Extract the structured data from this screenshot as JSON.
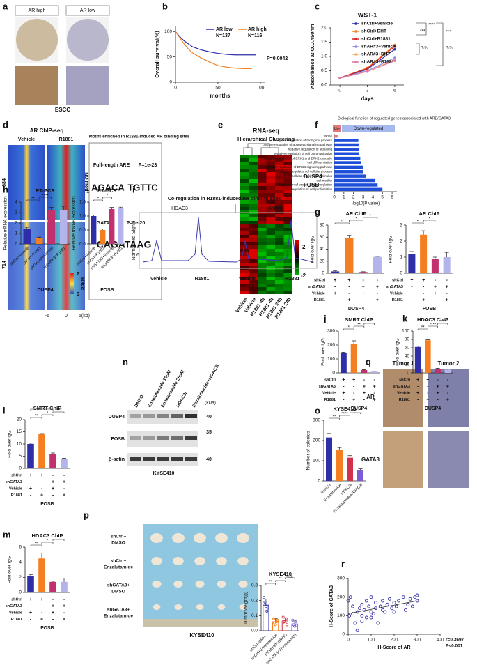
{
  "chart_data": [
    {
      "type": "line",
      "xlabel": "months",
      "ylabel": "Overall survival(%)",
      "xlim": [
        0,
        105
      ],
      "xticks": [
        0,
        50,
        100
      ],
      "ylim": [
        0,
        110
      ],
      "yticks": [
        0,
        50,
        100
      ],
      "series": [
        {
          "name": "AR low",
          "color": "#2e2ea8",
          "x": [
            0,
            5,
            10,
            15,
            20,
            30,
            40,
            50,
            60,
            70,
            80,
            95
          ],
          "values": [
            100,
            90,
            82,
            76,
            70,
            64,
            60,
            57,
            55,
            54,
            54,
            54
          ]
        },
        {
          "name": "AR high",
          "color": "#f57f20",
          "x": [
            0,
            5,
            10,
            15,
            20,
            30,
            40,
            50,
            60,
            70,
            80,
            90
          ],
          "values": [
            100,
            88,
            76,
            66,
            58,
            48,
            40,
            33,
            30,
            28,
            27,
            27
          ]
        }
      ],
      "annotations": [
        "N=137",
        "N=116",
        "P=0.0042"
      ]
    },
    {
      "type": "line",
      "title": "WST-1",
      "xlabel": "days",
      "ylabel": "Absorbance at O.D.450nm",
      "x": [
        0,
        3,
        6
      ],
      "xlim": [
        -1,
        7
      ],
      "xticks": [
        0,
        3,
        6
      ],
      "ylim": [
        0,
        2
      ],
      "yticks": [
        {
          "value": 0,
          "label": "0.0"
        },
        0.5,
        {
          "value": 1,
          "label": "1.0"
        },
        1.5,
        {
          "value": 2,
          "label": "2.0"
        }
      ],
      "series": [
        {
          "name": "shCtrl+Vehicle",
          "color": "#2e2ea8",
          "values": [
            0.25,
            0.55,
            1.25
          ]
        },
        {
          "name": "shCtrl+DHT",
          "color": "#f57f20",
          "values": [
            0.25,
            0.6,
            1.4
          ]
        },
        {
          "name": "shCtrl+R1881",
          "color": "#d62728",
          "values": [
            0.25,
            0.58,
            1.35
          ]
        },
        {
          "name": "shAR#3+Vehicle",
          "color": "#8f8fe0",
          "values": [
            0.25,
            0.5,
            0.95
          ]
        },
        {
          "name": "shAR#3+DHT",
          "color": "#f0b070",
          "values": [
            0.24,
            0.48,
            0.88
          ]
        },
        {
          "name": "shAR#3+R1881",
          "color": "#e07aa8",
          "values": [
            0.24,
            0.47,
            0.85
          ]
        }
      ],
      "annotations": [
        "****",
        "***",
        "***",
        "n.s.",
        "n.s."
      ]
    },
    {
      "type": "barh",
      "title": "Biological function of regulated genes associated with ARE/GATA3",
      "xlabel": "-log10(P value)",
      "categories": [
        "None",
        "negative regulation of biological process",
        "positive regulation of apoptotic signaling pathway",
        "negative regulation of signaling",
        "negative regulation of cell communication",
        "negative regulation of ERK1 and ERK2 cascade",
        "cell differentiation",
        "negative regulation of ERBB signaling pathway",
        "negative regulation of cellular process",
        "cellular response to stimulus",
        "cell motility",
        "regulation of protein phosphorylation",
        "regulation of cell proliferation"
      ],
      "series": [
        {
          "name": "Up-",
          "color": "#e07b7b",
          "values": [
            0.35,
            null,
            null,
            null,
            null,
            null,
            null,
            null,
            null,
            null,
            null,
            null,
            null
          ]
        },
        {
          "name": "Down-regulated",
          "color": "#1f4fd8",
          "values": [
            null,
            2.5,
            2.6,
            2.6,
            2.6,
            2.7,
            2.8,
            3.0,
            3.0,
            3.3,
            4.2,
            4.5,
            5.0
          ]
        }
      ],
      "xlim": [
        0,
        6.5
      ],
      "xticks": [
        0,
        1,
        2,
        3,
        4,
        5,
        6
      ]
    },
    {
      "type": "bar",
      "title": "AR ChIP",
      "ylabel": "Fold over IgG",
      "xlabel": "DUSP4",
      "values": [
        3,
        59,
        2,
        27
      ],
      "errors": [
        1,
        4,
        0.5,
        1
      ],
      "colors": [
        "#2e2ea8",
        "#f57f20",
        "#c2306e",
        "#b4b4ec"
      ],
      "ylim": [
        0,
        80
      ],
      "yticks": [
        0,
        20,
        40,
        60,
        80
      ],
      "conditions": [
        {
          "name": "shCtrl",
          "marks": [
            "+",
            "+",
            "-",
            "-"
          ]
        },
        {
          "name": "shGATA3",
          "marks": [
            "-",
            "-",
            "+",
            "+"
          ]
        },
        {
          "name": "Vehicle",
          "marks": [
            "+",
            "-",
            "+",
            "-"
          ]
        },
        {
          "name": "R1881",
          "marks": [
            "-",
            "+",
            "-",
            "+"
          ]
        }
      ],
      "annotations": [
        "**",
        "*",
        "*"
      ]
    },
    {
      "type": "bar",
      "title": "AR ChIP",
      "ylabel": "Fold over IgG",
      "xlabel": "FOSB",
      "values": [
        1.2,
        2.4,
        0.9,
        1.0
      ],
      "errors": [
        0.15,
        0.25,
        0.1,
        0.3
      ],
      "colors": [
        "#2e2ea8",
        "#f57f20",
        "#c2306e",
        "#b4b4ec"
      ],
      "ylim": [
        0,
        3
      ],
      "yticks": [
        0,
        1,
        2,
        3
      ],
      "conditions": [
        {
          "name": "shCtrl",
          "marks": [
            "+",
            "+",
            "-",
            "-"
          ]
        },
        {
          "name": "shGATA3",
          "marks": [
            "-",
            "-",
            "+",
            "+"
          ]
        },
        {
          "name": "Vehicle",
          "marks": [
            "+",
            "-",
            "+",
            "-"
          ]
        },
        {
          "name": "R1881",
          "marks": [
            "-",
            "+",
            "-",
            "+"
          ]
        }
      ],
      "annotations": [
        "*",
        "*"
      ]
    },
    {
      "type": "bar",
      "title": "RT-PCR",
      "ylabel": "Relative mRNA expression",
      "xlabel": "DUSP4",
      "categories": [
        "shCtrl+Vehicle",
        "shCtrl+R1881",
        "shGATA3+Vehicle",
        "shGATA3+R1881"
      ],
      "values": [
        1.4,
        0.6,
        3.2,
        3.2
      ],
      "errors": [
        0.2,
        0.05,
        0.3,
        0.4
      ],
      "colors": [
        "#2e2ea8",
        "#f57f20",
        "#c2306e",
        "#b4b4ec"
      ],
      "ylim": [
        0,
        4
      ],
      "yticks": [
        0,
        1,
        2,
        3,
        4
      ],
      "annotations": [
        "**",
        "****"
      ]
    },
    {
      "type": "bar",
      "title": "RT-PCR",
      "ylabel": "Relative mRNA expression",
      "xlabel": "FOSB",
      "categories": [
        "shCtrl+Vehicle",
        "shCtrl+R1881",
        "shGATA3+Vehicle",
        "shGATA3+R1881"
      ],
      "values": [
        1.0,
        0.5,
        1.25,
        1.3
      ],
      "errors": [
        0.04,
        0.04,
        0.06,
        0.02
      ],
      "colors": [
        "#2e2ea8",
        "#f57f20",
        "#c2306e",
        "#b4b4ec"
      ],
      "ylim": [
        0,
        1.5
      ],
      "yticks": [
        {
          "value": 0,
          "label": "0.0"
        },
        0.5,
        {
          "value": 1,
          "label": "1.0"
        },
        1.5
      ],
      "annotations": [
        "*",
        "*"
      ]
    },
    {
      "type": "bar",
      "title": "SMRT ChIP",
      "ylabel": "Fold over IgG",
      "xlabel": "DUSP4",
      "values": [
        140,
        205,
        20,
        10
      ],
      "errors": [
        8,
        25,
        3,
        2
      ],
      "colors": [
        "#2e2ea8",
        "#f57f20",
        "#c2306e",
        "#b4b4ec"
      ],
      "ylim": [
        0,
        300
      ],
      "yticks": [
        0,
        100,
        200,
        300
      ],
      "conditions": [
        {
          "name": "shCtrl",
          "marks": [
            "+",
            "+",
            "-",
            "-"
          ]
        },
        {
          "name": "shGATA3",
          "marks": [
            "-",
            "-",
            "+",
            "+"
          ]
        },
        {
          "name": "Vehicle",
          "marks": [
            "+",
            "-",
            "+",
            "-"
          ]
        },
        {
          "name": "R1881",
          "marks": [
            "-",
            "+",
            "-",
            "+"
          ]
        }
      ],
      "annotations": [
        "*",
        "**",
        "**"
      ]
    },
    {
      "type": "bar",
      "title": "HDAC3 ChIP",
      "ylabel": "Fold over IgG",
      "xlabel": "DUSP4",
      "values": [
        62,
        78,
        10,
        8
      ],
      "errors": [
        2,
        1,
        1,
        1
      ],
      "colors": [
        "#2e2ea8",
        "#f57f20",
        "#c2306e",
        "#b4b4ec"
      ],
      "ylim": [
        0,
        100
      ],
      "yticks": [
        0,
        20,
        40,
        60,
        80,
        100
      ],
      "conditions": [
        {
          "name": "shCtrl",
          "marks": [
            "+",
            "+",
            "-",
            "-"
          ]
        },
        {
          "name": "shGATA3",
          "marks": [
            "-",
            "-",
            "+",
            "+"
          ]
        },
        {
          "name": "Vehicle",
          "marks": [
            "+",
            "-",
            "+",
            "-"
          ]
        },
        {
          "name": "R1881",
          "marks": [
            "-",
            "+",
            "-",
            "+"
          ]
        }
      ],
      "annotations": [
        "**",
        "****",
        "****"
      ]
    },
    {
      "type": "bar",
      "title": "SMRT ChIP",
      "ylabel": "Fold over IgG",
      "xlabel": "FOSB",
      "values": [
        10,
        14,
        6,
        4
      ],
      "errors": [
        0.3,
        0.3,
        0.3,
        0.1
      ],
      "colors": [
        "#2e2ea8",
        "#f57f20",
        "#c2306e",
        "#b4b4ec"
      ],
      "ylim": [
        0,
        20
      ],
      "yticks": [
        0,
        5,
        10,
        15,
        20
      ],
      "conditions": [
        {
          "name": "shCtrl",
          "marks": [
            "+",
            "+",
            "-",
            "-"
          ]
        },
        {
          "name": "shGATA3",
          "marks": [
            "-",
            "-",
            "+",
            "+"
          ]
        },
        {
          "name": "Vehicle",
          "marks": [
            "+",
            "-",
            "+",
            "-"
          ]
        },
        {
          "name": "R1881",
          "marks": [
            "-",
            "+",
            "-",
            "+"
          ]
        }
      ],
      "annotations": [
        "**",
        "*",
        "****",
        "****"
      ]
    },
    {
      "type": "bar",
      "title": "HDAC3 ChIP",
      "ylabel": "Fold over IgG",
      "xlabel": "FOSB",
      "values": [
        2.2,
        4.5,
        1.4,
        1.4
      ],
      "errors": [
        0.15,
        0.7,
        0.1,
        0.5
      ],
      "colors": [
        "#2e2ea8",
        "#f57f20",
        "#c2306e",
        "#b4b4ec"
      ],
      "ylim": [
        0,
        6
      ],
      "yticks": [
        0,
        2,
        4,
        6
      ],
      "conditions": [
        {
          "name": "shCtrl",
          "marks": [
            "+",
            "+",
            "-",
            "-"
          ]
        },
        {
          "name": "shGATA3",
          "marks": [
            "-",
            "-",
            "+",
            "+"
          ]
        },
        {
          "name": "Vehicle",
          "marks": [
            "+",
            "-",
            "+",
            "-"
          ]
        },
        {
          "name": "R1881",
          "marks": [
            "-",
            "+",
            "-",
            "+"
          ]
        }
      ],
      "annotations": [
        "**",
        "*",
        "*"
      ]
    },
    {
      "type": "bar",
      "title": "KYSE410",
      "ylabel": "Number of colonies",
      "categories": [
        "Vehicle",
        "Enzalutamide",
        "HDAC3i",
        "Enzalutamide+HDAC3i"
      ],
      "values": [
        215,
        155,
        115,
        55
      ],
      "errors": [
        20,
        10,
        10,
        5
      ],
      "colors": [
        "#2e2ea8",
        "#f57f20",
        "#d0304a",
        "#7b5bd6"
      ],
      "ylim": [
        0,
        300
      ],
      "yticks": [
        0,
        100,
        200,
        300
      ],
      "annotations": [
        "**",
        "****",
        "***"
      ]
    },
    {
      "type": "bar",
      "title": "KYSE410",
      "ylabel": "Tumor weight(g)",
      "categories": [
        "shCtrl+DMSO",
        "shCtrl+Enzalutamide",
        "shGATA3+DMSO",
        "shGATA3+Enzalutamide"
      ],
      "values": [
        0.17,
        0.06,
        0.065,
        0.045
      ],
      "errors": [
        0.04,
        0.02,
        0.02,
        0.02
      ],
      "outline": true,
      "points": [
        [
          0.22,
          0.19,
          0.16,
          0.13,
          0.15
        ],
        [
          0.08,
          0.05,
          0.04,
          0.06,
          0.07
        ],
        [
          0.09,
          0.06,
          0.05,
          0.08,
          0.04
        ],
        [
          0.07,
          0.04,
          0.03,
          0.06,
          0.035
        ]
      ],
      "colors": [
        "#2e2ea8",
        "#f57f20",
        "#d0304a",
        "#7b5bd6"
      ],
      "ylim": [
        0,
        0.3
      ],
      "yticks": [
        {
          "value": 0,
          "label": "0.0"
        },
        0.1,
        0.2,
        0.3
      ],
      "annotations": [
        "**",
        "**",
        "n.s."
      ]
    },
    {
      "type": "scatter",
      "xlabel": "H-Score of AR",
      "ylabel": "H-Score of GATA3",
      "color": "#2e2ea8",
      "xlim": [
        0,
        400
      ],
      "xticks": [
        0,
        100,
        200,
        300,
        400
      ],
      "ylim": [
        0,
        300
      ],
      "yticks": [
        0,
        100,
        200,
        300
      ],
      "x": [
        0,
        5,
        10,
        20,
        20,
        30,
        40,
        50,
        60,
        60,
        70,
        80,
        80,
        90,
        100,
        100,
        110,
        120,
        120,
        130,
        140,
        150,
        150,
        160,
        170,
        180,
        190,
        200,
        200,
        210,
        220,
        240,
        250,
        260,
        270,
        280,
        290,
        300,
        300,
        100,
        60,
        40
      ],
      "values": [
        180,
        100,
        200,
        110,
        150,
        60,
        120,
        140,
        100,
        160,
        130,
        90,
        180,
        150,
        120,
        200,
        110,
        170,
        140,
        60,
        150,
        130,
        180,
        120,
        160,
        190,
        140,
        170,
        120,
        150,
        180,
        200,
        130,
        160,
        190,
        150,
        200,
        180,
        210,
        90,
        70,
        20
      ],
      "annotations": [
        "r=0.3697",
        "P<0.001"
      ]
    }
  ],
  "letters": [
    "a",
    "b",
    "c",
    "d",
    "e",
    "f",
    "g",
    "h",
    "i",
    "j",
    "k",
    "l",
    "m",
    "n",
    "o",
    "p",
    "q",
    "r"
  ],
  "panel_a": {
    "high": "AR high",
    "low": "AR low",
    "caption": "ESCC"
  },
  "panel_d": {
    "title": "AR ChIP-seq",
    "vehicle": "Vehicle",
    "r1881": "R1881",
    "n1": "684",
    "n2": "714",
    "no_motif": "NO motif",
    "motif_title": "Motifs enriched in R1881-induced AR binding sites",
    "are": "Full-length ARE",
    "are_p": "P=1e-23",
    "logo1": "AGACA",
    "logo1b": "TGTTC",
    "gata3": "GATA3",
    "gata3_p": "P=1e-20",
    "logo2": "CAGATAAG",
    "x_left": "-5",
    "x_mid": "0",
    "x_right": "5(kb)",
    "scale_top": "2",
    "scale_bottom": "0",
    "scale_label": "RPKM"
  },
  "panel_e": {
    "title": "RNA-seq",
    "subtitle": "Hierarchical Clustering",
    "gene1": "DUSP4",
    "gene2": "FOSB",
    "scale_top": "2",
    "scale_bottom": "-2",
    "columns": [
      "Vehicle",
      "Vehicle",
      "R1881 4h",
      "R1881 4h",
      "R1881 24h",
      "R1881 24h"
    ]
  },
  "panel_i": {
    "title": "Co-regulation in R1881-induced AR binding sites",
    "left": "HDAC3",
    "right": "SMRT",
    "ylabel": "Normalized Signal",
    "ytick": "6",
    "columns": [
      "Vehicle",
      "R1881",
      "Vehicle",
      "R1881"
    ]
  },
  "panel_n": {
    "lanes": [
      "DMSO",
      "Enzalutamide 10μM",
      "Enzalutamide 25μM",
      "HDAC3i",
      "Enzalutamide+HDAC3i"
    ],
    "unit": "(kDa)",
    "rows": [
      "DUSP4",
      "FOSB",
      "β-actin"
    ],
    "sizes": [
      "40",
      "35",
      "40"
    ],
    "caption": "KYSE410"
  },
  "panel_p": {
    "rows": [
      [
        "shCtrl+",
        "DMSO"
      ],
      [
        "shCtrl+",
        "Enzalutamide"
      ],
      [
        "shGATA3+",
        "DMSO"
      ],
      [
        "shGATA3+",
        "Enzalutamide"
      ]
    ],
    "caption": "KYSE410"
  },
  "panel_q": {
    "cols": [
      "Tumor 1",
      "Tumor 2"
    ],
    "rows": [
      "AR",
      "GATA3"
    ]
  }
}
